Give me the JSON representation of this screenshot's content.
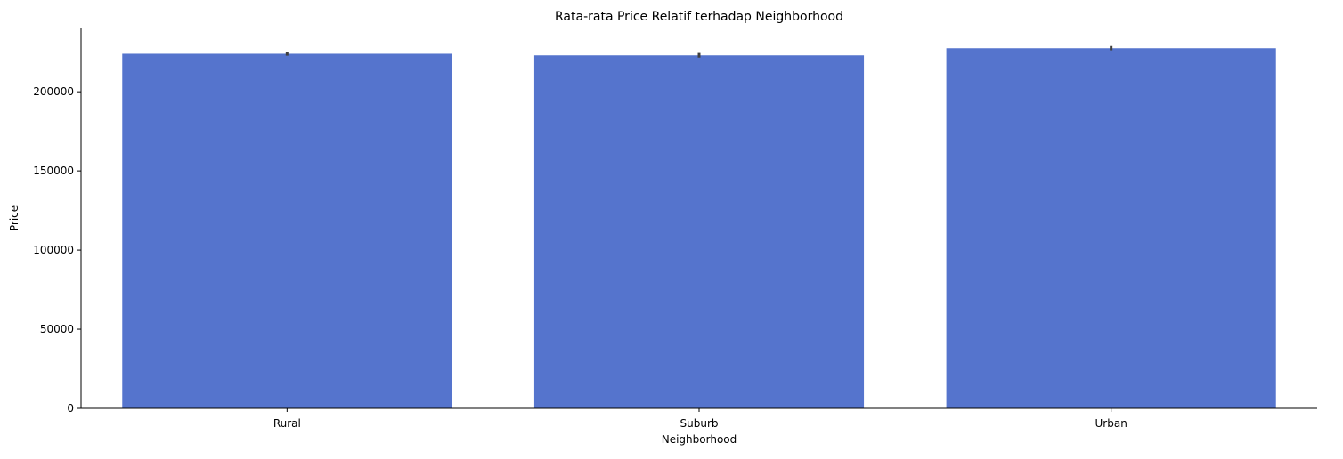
{
  "chart_data": {
    "type": "bar",
    "title": "Rata-rata Price Relatif terhadap Neighborhood",
    "xlabel": "Neighborhood",
    "ylabel": "Price",
    "categories": [
      "Rural",
      "Suburb",
      "Urban"
    ],
    "values": [
      224000,
      223000,
      227500
    ],
    "error_bars": [
      {
        "low": 222800,
        "high": 225300
      },
      {
        "low": 221600,
        "high": 224500
      },
      {
        "low": 226200,
        "high": 228900
      }
    ],
    "ylim": [
      0,
      240000
    ],
    "yticks": [
      0,
      50000,
      100000,
      150000,
      200000
    ],
    "ytick_labels": [
      "0",
      "50000",
      "100000",
      "150000",
      "200000"
    ],
    "grid": false,
    "bar_color": "#5574cd",
    "error_color": "#3f3f3f"
  }
}
